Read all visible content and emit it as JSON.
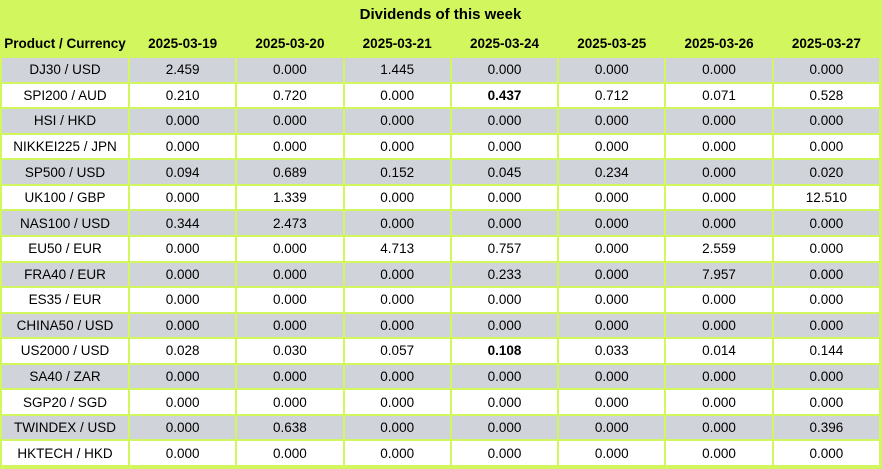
{
  "title": "Dividends of this week",
  "colors": {
    "header_green": "#d2f65e",
    "border_green": "#d2f65e",
    "row_gray": "#d1d3da",
    "row_white": "#ffffff",
    "text": "#000000"
  },
  "table": {
    "product_header": "Product / Currency",
    "date_columns": [
      "2025-03-19",
      "2025-03-20",
      "2025-03-21",
      "2025-03-24",
      "2025-03-25",
      "2025-03-26",
      "2025-03-27"
    ],
    "rows": [
      {
        "product": "DJ30 / USD",
        "values": [
          "2.459",
          "0.000",
          "1.445",
          "0.000",
          "0.000",
          "0.000",
          "0.000"
        ],
        "bold": []
      },
      {
        "product": "SPI200 / AUD",
        "values": [
          "0.210",
          "0.720",
          "0.000",
          "0.437",
          "0.712",
          "0.071",
          "0.528"
        ],
        "bold": [
          3
        ]
      },
      {
        "product": "HSI / HKD",
        "values": [
          "0.000",
          "0.000",
          "0.000",
          "0.000",
          "0.000",
          "0.000",
          "0.000"
        ],
        "bold": []
      },
      {
        "product": "NIKKEI225 / JPN",
        "values": [
          "0.000",
          "0.000",
          "0.000",
          "0.000",
          "0.000",
          "0.000",
          "0.000"
        ],
        "bold": []
      },
      {
        "product": "SP500 / USD",
        "values": [
          "0.094",
          "0.689",
          "0.152",
          "0.045",
          "0.234",
          "0.000",
          "0.020"
        ],
        "bold": []
      },
      {
        "product": "UK100 / GBP",
        "values": [
          "0.000",
          "1.339",
          "0.000",
          "0.000",
          "0.000",
          "0.000",
          "12.510"
        ],
        "bold": []
      },
      {
        "product": "NAS100 / USD",
        "values": [
          "0.344",
          "2.473",
          "0.000",
          "0.000",
          "0.000",
          "0.000",
          "0.000"
        ],
        "bold": []
      },
      {
        "product": "EU50 / EUR",
        "values": [
          "0.000",
          "0.000",
          "4.713",
          "0.757",
          "0.000",
          "2.559",
          "0.000"
        ],
        "bold": []
      },
      {
        "product": "FRA40 / EUR",
        "values": [
          "0.000",
          "0.000",
          "0.000",
          "0.233",
          "0.000",
          "7.957",
          "0.000"
        ],
        "bold": []
      },
      {
        "product": "ES35 / EUR",
        "values": [
          "0.000",
          "0.000",
          "0.000",
          "0.000",
          "0.000",
          "0.000",
          "0.000"
        ],
        "bold": []
      },
      {
        "product": "CHINA50 / USD",
        "values": [
          "0.000",
          "0.000",
          "0.000",
          "0.000",
          "0.000",
          "0.000",
          "0.000"
        ],
        "bold": []
      },
      {
        "product": "US2000 / USD",
        "values": [
          "0.028",
          "0.030",
          "0.057",
          "0.108",
          "0.033",
          "0.014",
          "0.144"
        ],
        "bold": [
          3
        ]
      },
      {
        "product": "SA40 / ZAR",
        "values": [
          "0.000",
          "0.000",
          "0.000",
          "0.000",
          "0.000",
          "0.000",
          "0.000"
        ],
        "bold": []
      },
      {
        "product": "SGP20 / SGD",
        "values": [
          "0.000",
          "0.000",
          "0.000",
          "0.000",
          "0.000",
          "0.000",
          "0.000"
        ],
        "bold": []
      },
      {
        "product": "TWINDEX / USD",
        "values": [
          "0.000",
          "0.638",
          "0.000",
          "0.000",
          "0.000",
          "0.000",
          "0.396"
        ],
        "bold": []
      },
      {
        "product": "HKTECH / HKD",
        "values": [
          "0.000",
          "0.000",
          "0.000",
          "0.000",
          "0.000",
          "0.000",
          "0.000"
        ],
        "bold": []
      }
    ]
  }
}
